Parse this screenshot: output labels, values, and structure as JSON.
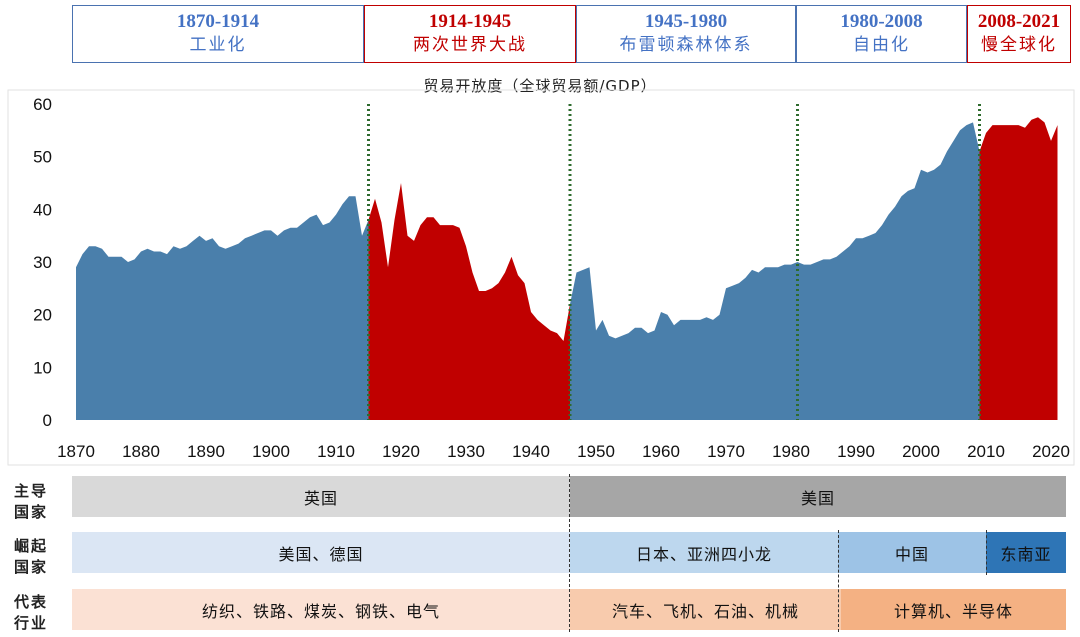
{
  "eras": [
    {
      "years": "1870-1914",
      "name": "工业化",
      "color": "blue"
    },
    {
      "years": "1914-1945",
      "name": "两次世界大战",
      "color": "red"
    },
    {
      "years": "1945-1980",
      "name": "布雷顿森林体系",
      "color": "blue"
    },
    {
      "years": "1980-2008",
      "name": "自由化",
      "color": "blue"
    },
    {
      "years": "2008-2021",
      "name": "慢全球化",
      "color": "red"
    }
  ],
  "chart_data": {
    "type": "area",
    "title": "贸易开放度（全球贸易额/GDP）",
    "xlim": [
      1870,
      2022
    ],
    "ylim": [
      0,
      60
    ],
    "xticks": [
      "1870",
      "1880",
      "1890",
      "1900",
      "1910",
      "1920",
      "1930",
      "1940",
      "1950",
      "1960",
      "1970",
      "1980",
      "1990",
      "2000",
      "2010",
      "2020"
    ],
    "yticks": [
      "0",
      "10",
      "20",
      "30",
      "40",
      "50",
      "60"
    ],
    "colors": {
      "blue": "#4a7fab",
      "red": "#c00000"
    },
    "separators": [
      1915,
      1946,
      1981,
      2009
    ],
    "series": [
      {
        "name": "1870-1914",
        "color": "blue",
        "x": [
          1870,
          1871,
          1872,
          1873,
          1874,
          1875,
          1876,
          1877,
          1878,
          1879,
          1880,
          1881,
          1882,
          1883,
          1884,
          1885,
          1886,
          1887,
          1888,
          1889,
          1890,
          1891,
          1892,
          1893,
          1894,
          1895,
          1896,
          1897,
          1898,
          1899,
          1900,
          1901,
          1902,
          1903,
          1904,
          1905,
          1906,
          1907,
          1908,
          1909,
          1910,
          1911,
          1912,
          1913,
          1914,
          1915
        ],
        "values": [
          29,
          31.5,
          33,
          33,
          32.5,
          31,
          31,
          31,
          30,
          30.5,
          32,
          32.5,
          32,
          32,
          31.5,
          33,
          32.5,
          33,
          34,
          35,
          34,
          34.5,
          33,
          32.5,
          33,
          33.5,
          34.5,
          35,
          35.5,
          36,
          36,
          35,
          36,
          36.5,
          36.5,
          37.5,
          38.5,
          39,
          37,
          37.5,
          39,
          41,
          42.5,
          42.5,
          35,
          38
        ]
      },
      {
        "name": "1914-1945",
        "color": "red",
        "x": [
          1915,
          1916,
          1917,
          1918,
          1919,
          1920,
          1921,
          1922,
          1923,
          1924,
          1925,
          1926,
          1927,
          1928,
          1929,
          1930,
          1931,
          1932,
          1933,
          1934,
          1935,
          1936,
          1937,
          1938,
          1939,
          1940,
          1941,
          1942,
          1943,
          1944,
          1945,
          1946
        ],
        "values": [
          38,
          42,
          37.5,
          29,
          38,
          45,
          35,
          34,
          37,
          38.5,
          38.5,
          37,
          37,
          37,
          36.5,
          33,
          28,
          24.5,
          24.5,
          25,
          26,
          28,
          31,
          27.5,
          26,
          20.5,
          19,
          18,
          17,
          16.5,
          15,
          22
        ]
      },
      {
        "name": "1945-1980",
        "color": "blue",
        "x": [
          1946,
          1947,
          1948,
          1949,
          1950,
          1951,
          1952,
          1953,
          1954,
          1955,
          1956,
          1957,
          1958,
          1959,
          1960,
          1961,
          1962,
          1963,
          1964,
          1965,
          1966,
          1967,
          1968,
          1969,
          1970,
          1971,
          1972,
          1973,
          1974,
          1975,
          1976,
          1977,
          1978,
          1979,
          1980,
          1981
        ],
        "values": [
          22,
          28,
          28.5,
          29,
          17,
          19,
          16,
          15.5,
          16,
          16.5,
          17.5,
          17.5,
          16.5,
          17,
          20.5,
          20,
          18,
          19,
          19,
          19,
          19,
          19.5,
          19,
          20,
          25,
          25.5,
          26,
          27,
          28.5,
          28,
          29,
          29,
          29,
          29.5,
          29.5,
          30
        ]
      },
      {
        "name": "1980-2008",
        "color": "blue",
        "x": [
          1981,
          1982,
          1983,
          1984,
          1985,
          1986,
          1987,
          1988,
          1989,
          1990,
          1991,
          1992,
          1993,
          1994,
          1995,
          1996,
          1997,
          1998,
          1999,
          2000,
          2001,
          2002,
          2003,
          2004,
          2005,
          2006,
          2007,
          2008,
          2009
        ],
        "values": [
          30,
          29.5,
          29.5,
          30,
          30.5,
          30.5,
          31,
          32,
          33,
          34.5,
          34.5,
          35,
          35.5,
          37,
          39,
          40.5,
          42.5,
          43.5,
          44,
          47.5,
          47,
          47.5,
          48.5,
          51,
          53,
          55,
          56,
          56.5,
          51
        ]
      },
      {
        "name": "2008-2021",
        "color": "red",
        "x": [
          2009,
          2010,
          2011,
          2012,
          2013,
          2014,
          2015,
          2016,
          2017,
          2018,
          2019,
          2020,
          2021
        ],
        "values": [
          51,
          54.5,
          56,
          56,
          56,
          56,
          56,
          55.5,
          57,
          57.5,
          56.5,
          53,
          56
        ]
      }
    ]
  },
  "rows": [
    {
      "label": "主导国家",
      "segments": [
        "英国",
        "美国"
      ]
    },
    {
      "label": "崛起国家",
      "segments": [
        "美国、德国",
        "日本、亚洲四小龙",
        "中国",
        "东南亚"
      ]
    },
    {
      "label": "代表行业",
      "segments": [
        "纺织、铁路、煤炭、钢铁、电气",
        "汽车、飞机、石油、机械",
        "计算机、半导体"
      ]
    }
  ]
}
